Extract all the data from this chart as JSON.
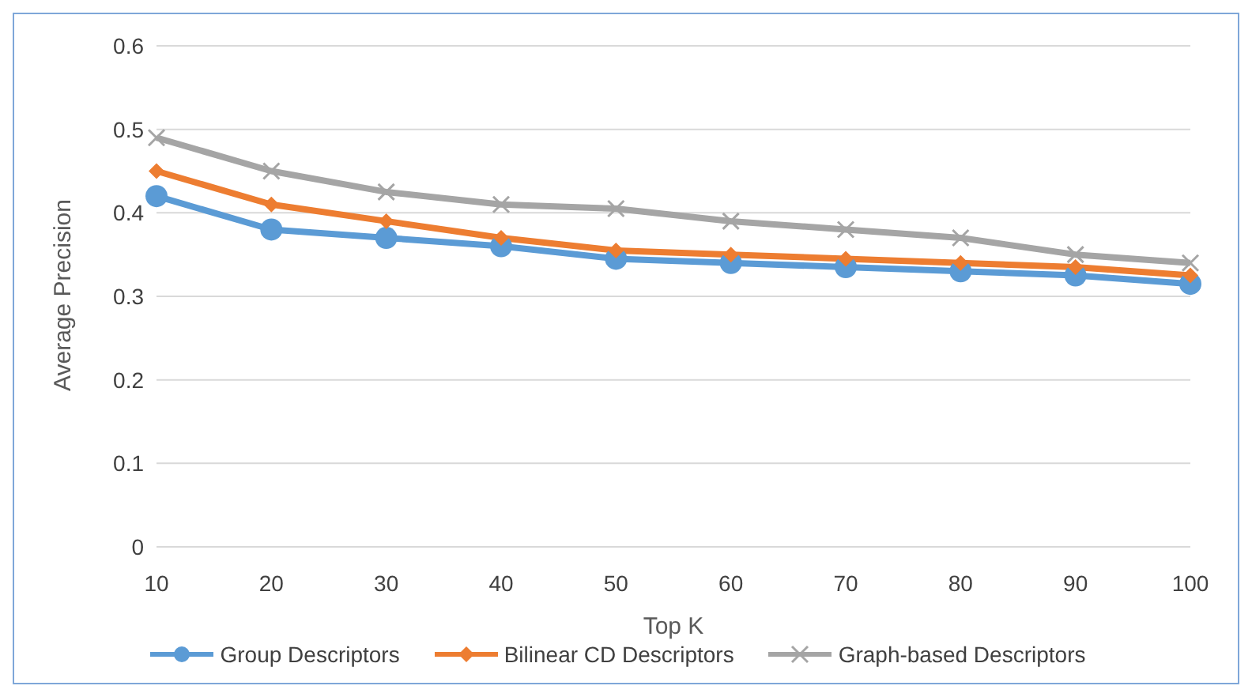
{
  "chart_data": {
    "type": "line",
    "xlabel": "Top K",
    "ylabel": "Average Precision",
    "categories": [
      "10",
      "20",
      "30",
      "40",
      "50",
      "60",
      "70",
      "80",
      "90",
      "100"
    ],
    "series": [
      {
        "name": "Group Descriptors",
        "color": "#5b9bd5",
        "marker": "circle",
        "values": [
          0.42,
          0.38,
          0.37,
          0.36,
          0.345,
          0.34,
          0.335,
          0.33,
          0.325,
          0.315
        ]
      },
      {
        "name": "Bilinear CD Descriptors",
        "color": "#ed7d31",
        "marker": "diamond",
        "values": [
          0.45,
          0.41,
          0.39,
          0.37,
          0.355,
          0.35,
          0.345,
          0.34,
          0.335,
          0.325
        ]
      },
      {
        "name": "Graph-based Descriptors",
        "color": "#a5a5a5",
        "marker": "cross",
        "values": [
          0.49,
          0.45,
          0.425,
          0.41,
          0.405,
          0.39,
          0.38,
          0.37,
          0.35,
          0.34
        ]
      }
    ],
    "ylim": [
      0,
      0.6
    ],
    "yticks": [
      0,
      0.1,
      0.2,
      0.3,
      0.4,
      0.5,
      0.6
    ],
    "grid": "y",
    "legend": "bottom"
  }
}
